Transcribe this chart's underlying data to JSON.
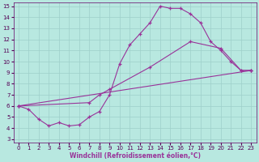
{
  "xlabel": "Windchill (Refroidissement éolien,°C)",
  "ylabel": "",
  "xlim": [
    -0.5,
    23.5
  ],
  "ylim": [
    2.7,
    15.3
  ],
  "xticks": [
    0,
    1,
    2,
    3,
    4,
    5,
    6,
    7,
    8,
    9,
    10,
    11,
    12,
    13,
    14,
    15,
    16,
    17,
    18,
    19,
    20,
    21,
    22,
    23
  ],
  "yticks": [
    3,
    4,
    5,
    6,
    7,
    8,
    9,
    10,
    11,
    12,
    13,
    14,
    15
  ],
  "background_color": "#b8e8e0",
  "grid_color": "#9ecfca",
  "line_color": "#993399",
  "line1_x": [
    0,
    1,
    2,
    3,
    4,
    5,
    6,
    7,
    8,
    9,
    10,
    11,
    12,
    13,
    14,
    15,
    16,
    17,
    18,
    19,
    20,
    21,
    22,
    23
  ],
  "line1_y": [
    6.0,
    5.7,
    4.8,
    4.2,
    4.5,
    4.2,
    4.3,
    5.0,
    5.5,
    7.0,
    9.8,
    11.5,
    12.5,
    13.5,
    15.0,
    14.8,
    14.8,
    14.3,
    13.5,
    11.8,
    11.0,
    10.0,
    9.2,
    9.2
  ],
  "line2_x": [
    0,
    23
  ],
  "line2_y": [
    6.0,
    9.2
  ],
  "line3_x": [
    0,
    7,
    8,
    9,
    13,
    17,
    20,
    22,
    23
  ],
  "line3_y": [
    6.0,
    6.3,
    7.0,
    7.5,
    9.5,
    11.8,
    11.2,
    9.2,
    9.2
  ],
  "tick_fontsize": 5,
  "xlabel_fontsize": 5.5
}
